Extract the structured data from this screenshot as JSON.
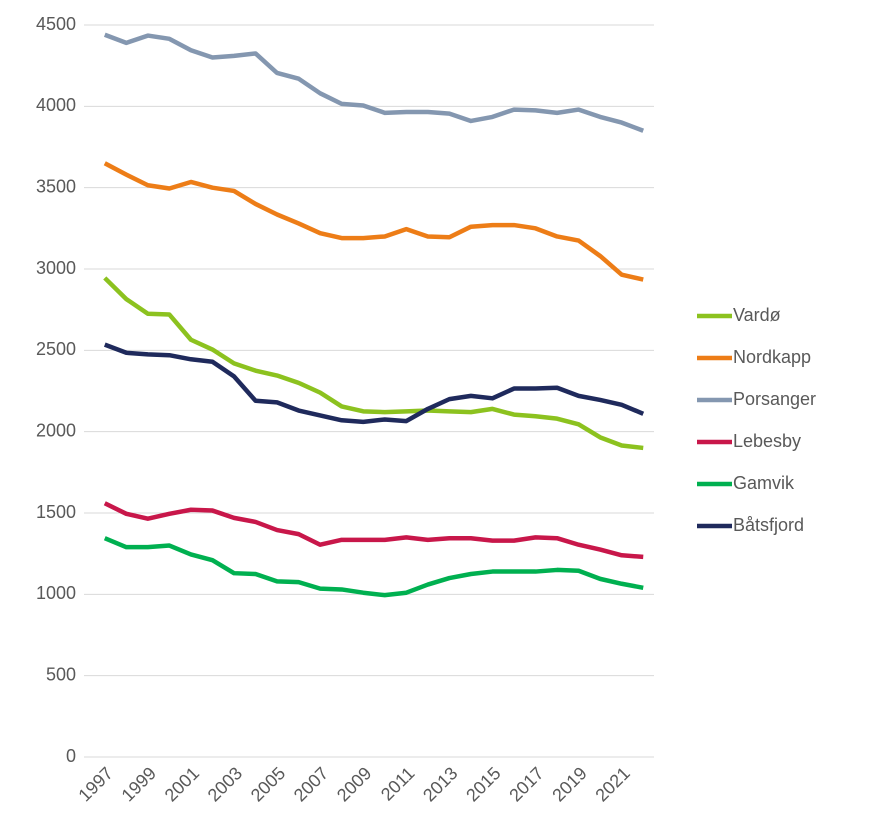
{
  "chart_data": {
    "type": "line",
    "x": [
      1997,
      1998,
      1999,
      2000,
      2001,
      2002,
      2003,
      2004,
      2005,
      2006,
      2007,
      2008,
      2009,
      2010,
      2011,
      2012,
      2013,
      2014,
      2015,
      2016,
      2017,
      2018,
      2019,
      2020,
      2021,
      2022
    ],
    "xlim": [
      1996.5,
      2022.5
    ],
    "xticks": [
      1997,
      1999,
      2001,
      2003,
      2005,
      2007,
      2009,
      2011,
      2013,
      2015,
      2017,
      2019,
      2021
    ],
    "ylim": [
      0,
      4500
    ],
    "yticks": [
      0,
      500,
      1000,
      1500,
      2000,
      2500,
      3000,
      3500,
      4000,
      4500
    ],
    "grid": true,
    "legend": "right",
    "series": [
      {
        "name": "Vardø",
        "color": "#8cc21f",
        "values": [
          2945,
          2815,
          2725,
          2720,
          2565,
          2505,
          2420,
          2375,
          2345,
          2300,
          2240,
          2155,
          2125,
          2120,
          2125,
          2130,
          2125,
          2120,
          2140,
          2105,
          2095,
          2080,
          2045,
          1965,
          1915,
          1900
        ]
      },
      {
        "name": "Nordkapp",
        "color": "#ed7d17",
        "values": [
          3650,
          3580,
          3515,
          3495,
          3535,
          3500,
          3480,
          3400,
          3335,
          3280,
          3220,
          3190,
          3190,
          3200,
          3245,
          3200,
          3195,
          3260,
          3270,
          3270,
          3250,
          3200,
          3175,
          3080,
          2965,
          2935
        ]
      },
      {
        "name": "Porsanger",
        "color": "#8497b0",
        "values": [
          4440,
          4390,
          4435,
          4415,
          4345,
          4300,
          4310,
          4325,
          4205,
          4170,
          4080,
          4015,
          4005,
          3960,
          3965,
          3965,
          3955,
          3910,
          3935,
          3980,
          3975,
          3960,
          3980,
          3935,
          3900,
          3850
        ]
      },
      {
        "name": "Lebesby",
        "color": "#c8174a",
        "values": [
          1560,
          1495,
          1465,
          1495,
          1520,
          1515,
          1470,
          1445,
          1395,
          1370,
          1305,
          1335,
          1335,
          1335,
          1350,
          1335,
          1345,
          1345,
          1330,
          1330,
          1350,
          1345,
          1305,
          1275,
          1240,
          1230
        ]
      },
      {
        "name": "Gamvik",
        "color": "#00b050",
        "values": [
          1345,
          1290,
          1290,
          1300,
          1245,
          1210,
          1130,
          1125,
          1080,
          1075,
          1035,
          1030,
          1010,
          995,
          1010,
          1060,
          1100,
          1125,
          1140,
          1140,
          1140,
          1150,
          1145,
          1095,
          1065,
          1040
        ]
      },
      {
        "name": "Båtsfjord",
        "color": "#1f2a5c",
        "values": [
          2535,
          2485,
          2475,
          2470,
          2445,
          2430,
          2340,
          2190,
          2180,
          2130,
          2100,
          2070,
          2060,
          2075,
          2065,
          2140,
          2200,
          2220,
          2205,
          2265,
          2265,
          2270,
          2220,
          2195,
          2165,
          2110
        ]
      }
    ]
  }
}
